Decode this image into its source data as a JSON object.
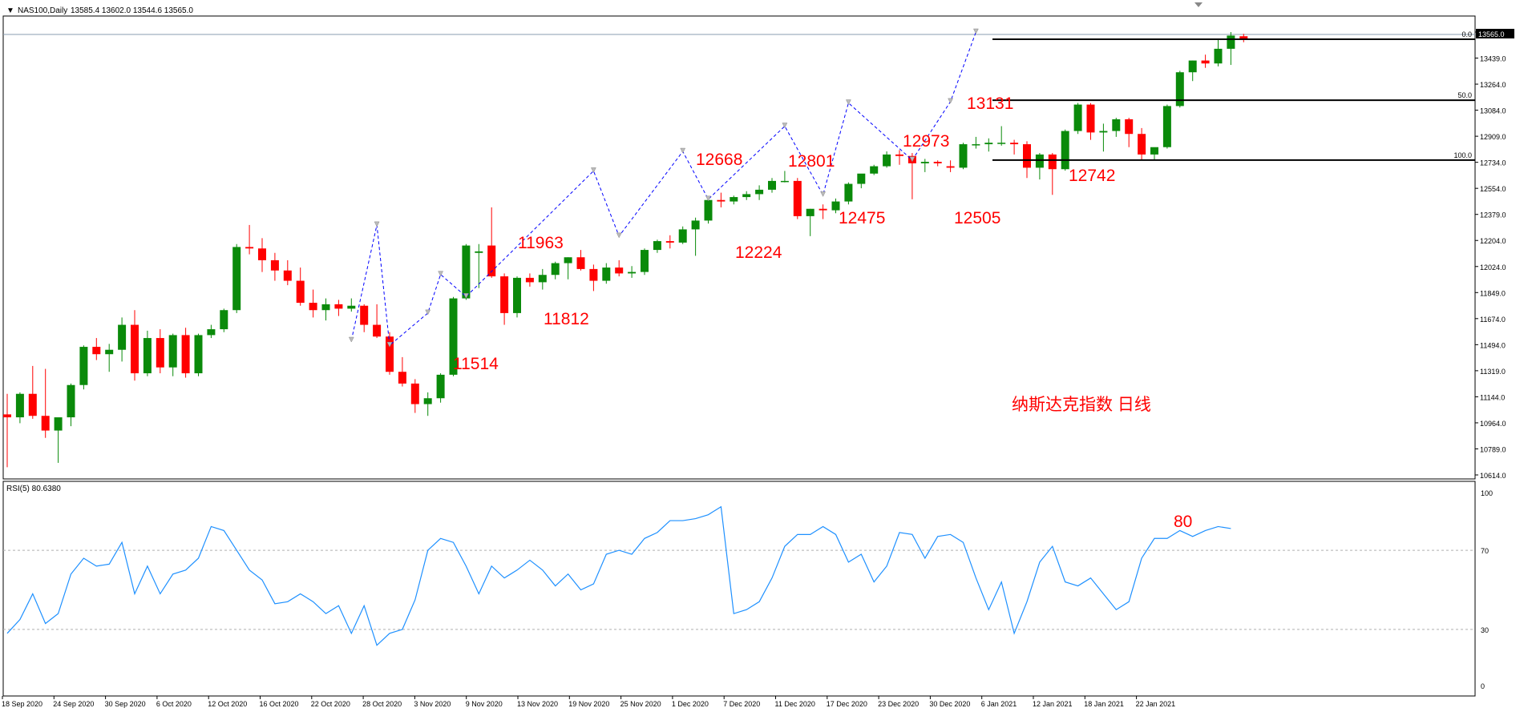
{
  "header": {
    "symbol": "NAS100,Daily",
    "ohlc": "13585.4 13602.0 13544.6 13565.0",
    "current_price": "13565.0",
    "indicator": "RSI(5) 80.6380"
  },
  "annotation": "纳斯达克指数 日线",
  "price_axis_labels": [
    "13614.0",
    "13439.0",
    "13264.0",
    "13084.0",
    "12909.0",
    "12734.0",
    "12554.0",
    "12379.0",
    "12204.0",
    "12024.0",
    "11849.0",
    "11674.0",
    "11494.0",
    "11319.0",
    "11144.0",
    "10964.0",
    "10789.0",
    "10614.0"
  ],
  "rsi_axis_labels": [
    "100",
    "70",
    "30",
    "0"
  ],
  "date_labels": [
    "18 Sep 2020",
    "24 Sep 2020",
    "30 Sep 2020",
    "6 Oct 2020",
    "12 Oct 2020",
    "16 Oct 2020",
    "22 Oct 2020",
    "28 Oct 2020",
    "3 Nov 2020",
    "9 Nov 2020",
    "13 Nov 2020",
    "19 Nov 2020",
    "25 Nov 2020",
    "1 Dec 2020",
    "7 Dec 2020",
    "11 Dec 2020",
    "17 Dec 2020",
    "23 Dec 2020",
    "30 Dec 2020",
    "6 Jan 2021",
    "12 Jan 2021",
    "18 Jan 2021",
    "22 Jan 2021"
  ],
  "fib_levels": [
    {
      "label": "0.0",
      "price": 13565
    },
    {
      "label": "50.0",
      "price": 13150
    },
    {
      "label": "100.0",
      "price": 12742
    }
  ],
  "swing_labels": [
    {
      "text": "11514",
      "index": 27
    },
    {
      "text": "11963",
      "index": 34
    },
    {
      "text": "11812",
      "index": 36
    },
    {
      "text": "12668",
      "index": 46
    },
    {
      "text": "12224",
      "index": 48
    },
    {
      "text": "12801",
      "index": 53
    },
    {
      "text": "12475",
      "index": 55
    },
    {
      "text": "12973",
      "index": 61
    },
    {
      "text": "12505",
      "index": 64
    },
    {
      "text": "13131",
      "index": 66
    },
    {
      "text": "12742",
      "index": 71
    },
    {
      "text": "80",
      "index": 76
    }
  ],
  "colors": {
    "bull": "#0a8a0a",
    "bear": "#ff0000",
    "rsi": "#1e90ff",
    "zigzag": "#0000ff",
    "label": "#ff0000"
  },
  "chart_data": {
    "type": "candlestick",
    "price_ylim": [
      10614,
      13614
    ],
    "rsi_ylim": [
      0,
      100
    ],
    "rsi_levels": [
      30,
      70
    ],
    "candles": [
      [
        11010,
        11150,
        10650,
        10990
      ],
      [
        10990,
        11160,
        10950,
        11150
      ],
      [
        11150,
        11340,
        10980,
        11000
      ],
      [
        11000,
        11320,
        10850,
        10900
      ],
      [
        10900,
        10970,
        10680,
        10990
      ],
      [
        10990,
        11220,
        10930,
        11210
      ],
      [
        11210,
        11480,
        11180,
        11470
      ],
      [
        11470,
        11530,
        11380,
        11420
      ],
      [
        11420,
        11490,
        11300,
        11450
      ],
      [
        11450,
        11670,
        11370,
        11620
      ],
      [
        11620,
        11720,
        11240,
        11290
      ],
      [
        11290,
        11580,
        11270,
        11530
      ],
      [
        11530,
        11590,
        11290,
        11330
      ],
      [
        11330,
        11560,
        11270,
        11550
      ],
      [
        11550,
        11600,
        11260,
        11290
      ],
      [
        11290,
        11560,
        11270,
        11550
      ],
      [
        11550,
        11620,
        11530,
        11590
      ],
      [
        11590,
        11730,
        11570,
        11720
      ],
      [
        11720,
        12170,
        11700,
        12150
      ],
      [
        12150,
        12300,
        12100,
        12140
      ],
      [
        12140,
        12210,
        11980,
        12060
      ],
      [
        12060,
        12110,
        11920,
        11990
      ],
      [
        11990,
        12060,
        11890,
        11920
      ],
      [
        11920,
        12010,
        11750,
        11770
      ],
      [
        11770,
        11860,
        11670,
        11720
      ],
      [
        11720,
        11800,
        11650,
        11760
      ],
      [
        11760,
        11790,
        11680,
        11730
      ],
      [
        11730,
        11800,
        11710,
        11750
      ],
      [
        11750,
        11760,
        11570,
        11620
      ],
      [
        11620,
        11760,
        11530,
        11540
      ],
      [
        11540,
        11570,
        11280,
        11300
      ],
      [
        11300,
        11400,
        11200,
        11220
      ],
      [
        11220,
        11250,
        11020,
        11080
      ],
      [
        11080,
        11160,
        11000,
        11120
      ],
      [
        11120,
        11290,
        11090,
        11280
      ],
      [
        11280,
        11810,
        11270,
        11800
      ],
      [
        11800,
        12170,
        11790,
        12160
      ],
      [
        12110,
        12170,
        11870,
        12120
      ],
      [
        12160,
        12420,
        11940,
        11950
      ],
      [
        11950,
        11970,
        11620,
        11700
      ],
      [
        11700,
        11950,
        11670,
        11940
      ],
      [
        11940,
        11970,
        11880,
        11910
      ],
      [
        11910,
        12000,
        11860,
        11960
      ],
      [
        11960,
        12050,
        11930,
        12040
      ],
      [
        12040,
        12080,
        11930,
        12080
      ],
      [
        12080,
        12130,
        11990,
        12000
      ],
      [
        12000,
        12030,
        11850,
        11920
      ],
      [
        11920,
        12040,
        11900,
        12010
      ],
      [
        12010,
        12060,
        11950,
        11970
      ],
      [
        11970,
        12020,
        11940,
        11980
      ],
      [
        11980,
        12140,
        11960,
        12130
      ],
      [
        12130,
        12200,
        12110,
        12190
      ],
      [
        12190,
        12230,
        12140,
        12180
      ],
      [
        12180,
        12290,
        12170,
        12270
      ],
      [
        12270,
        12350,
        12090,
        12330
      ],
      [
        12330,
        12480,
        12310,
        12470
      ],
      [
        12470,
        12520,
        12420,
        12460
      ],
      [
        12460,
        12500,
        12440,
        12490
      ],
      [
        12490,
        12530,
        12470,
        12510
      ],
      [
        12510,
        12570,
        12470,
        12540
      ],
      [
        12540,
        12620,
        12520,
        12600
      ],
      [
        12600,
        12668,
        12590,
        12600
      ],
      [
        12600,
        12620,
        12340,
        12360
      ],
      [
        12360,
        12410,
        12224,
        12410
      ],
      [
        12410,
        12440,
        12340,
        12400
      ],
      [
        12400,
        12480,
        12380,
        12460
      ],
      [
        12460,
        12590,
        12440,
        12580
      ],
      [
        12580,
        12640,
        12550,
        12650
      ],
      [
        12650,
        12710,
        12640,
        12700
      ],
      [
        12700,
        12801,
        12690,
        12780
      ],
      [
        12780,
        12810,
        12710,
        12770
      ],
      [
        12770,
        12790,
        12475,
        12720
      ],
      [
        12720,
        12750,
        12660,
        12730
      ],
      [
        12730,
        12740,
        12700,
        12720
      ],
      [
        12700,
        12740,
        12660,
        12690
      ],
      [
        12690,
        12860,
        12680,
        12850
      ],
      [
        12850,
        12900,
        12820,
        12850
      ],
      [
        12850,
        12890,
        12800,
        12860
      ],
      [
        12860,
        12973,
        12840,
        12860
      ],
      [
        12860,
        12880,
        12780,
        12850
      ],
      [
        12850,
        12870,
        12620,
        12690
      ],
      [
        12690,
        12790,
        12610,
        12780
      ],
      [
        12780,
        12790,
        12505,
        12680
      ],
      [
        12680,
        12950,
        12670,
        12940
      ],
      [
        12940,
        13131,
        12920,
        13120
      ],
      [
        13120,
        13130,
        12880,
        12930
      ],
      [
        12930,
        12990,
        12800,
        12940
      ],
      [
        12940,
        13030,
        12900,
        13020
      ],
      [
        13020,
        13030,
        12830,
        12920
      ],
      [
        12920,
        12960,
        12742,
        12780
      ],
      [
        12780,
        12820,
        12742,
        12830
      ],
      [
        12830,
        13120,
        12820,
        13110
      ],
      [
        13110,
        13350,
        13100,
        13340
      ],
      [
        13340,
        13420,
        13280,
        13420
      ],
      [
        13420,
        13460,
        13370,
        13400
      ],
      [
        13400,
        13570,
        13380,
        13500
      ],
      [
        13500,
        13614,
        13390,
        13590
      ],
      [
        13585.4,
        13602,
        13544.6,
        13565
      ]
    ],
    "rsi": [
      28,
      35,
      48,
      33,
      38,
      58,
      66,
      62,
      63,
      74,
      48,
      62,
      48,
      58,
      60,
      66,
      82,
      80,
      70,
      60,
      55,
      43,
      44,
      48,
      44,
      38,
      42,
      28,
      42,
      22,
      28,
      30,
      45,
      70,
      76,
      74,
      62,
      48,
      62,
      56,
      60,
      65,
      60,
      52,
      58,
      50,
      53,
      68,
      70,
      68,
      76,
      79,
      85,
      85,
      86,
      88,
      92,
      38,
      40,
      44,
      56,
      72,
      78,
      78,
      82,
      78,
      64,
      68,
      54,
      62,
      79,
      78,
      66,
      77,
      78,
      74,
      56,
      40,
      54,
      28,
      44,
      64,
      72,
      54,
      52,
      56,
      48,
      40,
      44,
      66,
      76,
      76,
      80,
      77,
      80,
      82,
      81
    ],
    "zigzag": [
      [
        27,
        11514
      ],
      [
        29,
        12300
      ],
      [
        30,
        11480
      ],
      [
        33,
        11700
      ],
      [
        34,
        11963
      ],
      [
        36,
        11812
      ],
      [
        46,
        12668
      ],
      [
        48,
        12224
      ],
      [
        53,
        12801
      ],
      [
        55,
        12475
      ],
      [
        61,
        12973
      ],
      [
        64,
        12505
      ],
      [
        66,
        13131
      ],
      [
        71,
        12742
      ],
      [
        76,
        13614
      ],
      [
        74,
        13140
      ]
    ]
  }
}
